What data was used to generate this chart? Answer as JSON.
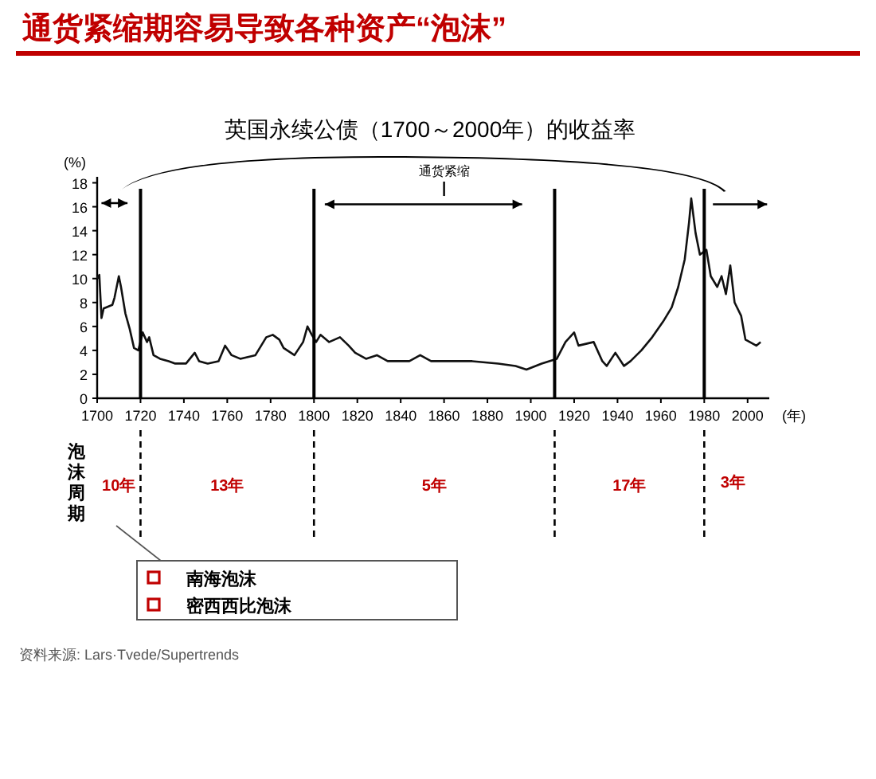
{
  "chart_data": {
    "type": "line",
    "title": "通货紧缩期容易导致各种资产“泡沫”",
    "subtitle": "英国永续公债（1700～2000年）的收益率",
    "xlabel": "(年)",
    "ylabel": "(%)",
    "x": [
      1700,
      1701,
      1702,
      1703,
      1707,
      1708,
      1710,
      1711,
      1713,
      1715,
      1717,
      1719,
      1721,
      1723,
      1724,
      1726,
      1729,
      1733,
      1736,
      1741,
      1745,
      1747,
      1751,
      1756,
      1759,
      1762,
      1766,
      1773,
      1778,
      1781,
      1784,
      1786,
      1791,
      1795,
      1797,
      1799,
      1801,
      1803,
      1807,
      1812,
      1816,
      1819,
      1824,
      1829,
      1834,
      1844,
      1849,
      1854,
      1863,
      1873,
      1885,
      1893,
      1898,
      1905,
      1912,
      1916,
      1920,
      1922,
      1929,
      1933,
      1935,
      1939,
      1943,
      1946,
      1951,
      1956,
      1961,
      1965,
      1968,
      1971,
      1973,
      1974,
      1976,
      1978,
      1981,
      1983,
      1986,
      1988,
      1990,
      1992,
      1994,
      1997,
      1999,
      2001,
      2004,
      2006
    ],
    "series": [
      {
        "color": "#111111",
        "values": [
          10.0,
          10.3,
          6.7,
          7.5,
          7.8,
          8.4,
          10.2,
          9.3,
          7.1,
          5.8,
          4.2,
          4.0,
          5.5,
          4.7,
          5.1,
          3.6,
          3.3,
          3.1,
          2.9,
          2.9,
          3.8,
          3.1,
          2.9,
          3.1,
          4.4,
          3.6,
          3.3,
          3.6,
          5.1,
          5.3,
          4.9,
          4.2,
          3.6,
          4.7,
          6.0,
          5.3,
          4.7,
          5.3,
          4.7,
          5.1,
          4.4,
          3.8,
          3.3,
          3.6,
          3.1,
          3.1,
          3.6,
          3.1,
          3.1,
          3.1,
          2.9,
          2.7,
          2.4,
          2.9,
          3.3,
          4.7,
          5.5,
          4.4,
          4.7,
          3.1,
          2.7,
          3.8,
          2.7,
          3.1,
          4.0,
          5.1,
          6.4,
          7.6,
          9.3,
          11.6,
          14.7,
          16.7,
          13.8,
          12.0,
          12.4,
          10.2,
          9.3,
          10.2,
          8.7,
          11.1,
          8.0,
          6.9,
          4.9,
          4.7,
          4.4,
          4.7
        ]
      }
    ],
    "xlim": [
      1700,
      2010
    ],
    "ylim": [
      0,
      18.5
    ],
    "xticks": [
      1700,
      1720,
      1740,
      1760,
      1780,
      1800,
      1820,
      1840,
      1860,
      1880,
      1900,
      1920,
      1940,
      1960,
      1980,
      2000
    ],
    "yticks": [
      0,
      2,
      4,
      6,
      8,
      10,
      12,
      14,
      16,
      18
    ],
    "ref_lines": [
      {
        "axis": "x",
        "value": 1720,
        "color": "#000000"
      },
      {
        "axis": "x",
        "value": 1800,
        "color": "#000000"
      },
      {
        "axis": "x",
        "value": 1911,
        "color": "#000000"
      },
      {
        "axis": "x",
        "value": 1980,
        "color": "#000000"
      }
    ],
    "annotations": [
      "通货紧缩",
      "泡沫周期",
      "10年",
      "13年",
      "5年",
      "17年",
      "3年",
      "南海泡沫",
      "密西西比泡沫",
      "资料来源: Lars·Tvede/Supertrends"
    ]
  }
}
